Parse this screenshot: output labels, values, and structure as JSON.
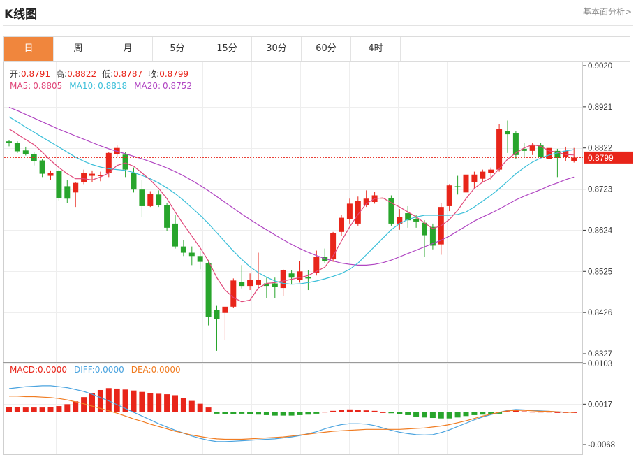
{
  "header": {
    "title": "K线图",
    "analysis_link": "基本面分析>"
  },
  "tabs": [
    {
      "label": "日",
      "active": true
    },
    {
      "label": "周",
      "active": false
    },
    {
      "label": "月",
      "active": false
    },
    {
      "label": "5分",
      "active": false
    },
    {
      "label": "15分",
      "active": false
    },
    {
      "label": "30分",
      "active": false
    },
    {
      "label": "60分",
      "active": false
    },
    {
      "label": "4时",
      "active": false
    }
  ],
  "ohlc_legend": {
    "open_label": "开:",
    "open": "0.8791",
    "high_label": "高:",
    "high": "0.8822",
    "low_label": "低:",
    "low": "0.8787",
    "close_label": "收:",
    "close": "0.8799"
  },
  "ma_legend": {
    "ma5_label": "MA5:",
    "ma5": "0.8805",
    "ma10_label": "MA10:",
    "ma10": "0.8818",
    "ma20_label": "MA20:",
    "ma20": "0.8752"
  },
  "macd_legend": {
    "macd_label": "MACD:",
    "macd": "0.0000",
    "diff_label": "DIFF:",
    "diff": "0.0000",
    "dea_label": "DEA:",
    "dea": "0.0000"
  },
  "current_price_tag": "0.8799",
  "colors": {
    "up": "#e8251a",
    "down": "#28a52c",
    "ma5": "#e0487a",
    "ma10": "#3bbfd9",
    "ma20": "#b045c2",
    "diff": "#4aa3df",
    "dea": "#f07c22",
    "active_tab": "#f0863d"
  },
  "chart_data": [
    {
      "type": "candlestick",
      "y_ticks": [
        "0.9020",
        "0.8921",
        "0.8822",
        "0.8723",
        "0.8624",
        "0.8525",
        "0.8426",
        "0.8327"
      ],
      "ylim": [
        0.8327,
        0.902
      ],
      "candles": [
        [
          0.8838,
          0.8841,
          0.8826,
          0.8834
        ],
        [
          0.8834,
          0.8838,
          0.881,
          0.8814
        ],
        [
          0.8816,
          0.8825,
          0.8804,
          0.8808
        ],
        [
          0.8808,
          0.8812,
          0.878,
          0.879
        ],
        [
          0.8792,
          0.8796,
          0.8752,
          0.876
        ],
        [
          0.8755,
          0.8768,
          0.8745,
          0.8762
        ],
        [
          0.8766,
          0.877,
          0.8695,
          0.8702
        ],
        [
          0.873,
          0.8745,
          0.869,
          0.87
        ],
        [
          0.8715,
          0.874,
          0.868,
          0.8738
        ],
        [
          0.874,
          0.877,
          0.8735,
          0.8762
        ],
        [
          0.8755,
          0.8768,
          0.874,
          0.876
        ],
        [
          0.8755,
          0.8765,
          0.8742,
          0.8756
        ],
        [
          0.8762,
          0.8812,
          0.8752,
          0.881
        ],
        [
          0.8808,
          0.8828,
          0.88,
          0.8822
        ],
        [
          0.8806,
          0.8812,
          0.8752,
          0.877
        ],
        [
          0.8762,
          0.8775,
          0.8715,
          0.8722
        ],
        [
          0.8722,
          0.8745,
          0.8655,
          0.8682
        ],
        [
          0.8682,
          0.8718,
          0.868,
          0.8712
        ],
        [
          0.871,
          0.872,
          0.868,
          0.8685
        ],
        [
          0.8685,
          0.869,
          0.8622,
          0.863
        ],
        [
          0.864,
          0.866,
          0.858,
          0.8585
        ],
        [
          0.8585,
          0.86,
          0.8562,
          0.857
        ],
        [
          0.857,
          0.8585,
          0.854,
          0.8562
        ],
        [
          0.8562,
          0.8575,
          0.853,
          0.8548
        ],
        [
          0.8545,
          0.8552,
          0.8395,
          0.8415
        ],
        [
          0.8432,
          0.8442,
          0.8334,
          0.841
        ],
        [
          0.8425,
          0.8435,
          0.836,
          0.844
        ],
        [
          0.844,
          0.8508,
          0.8438,
          0.8503
        ],
        [
          0.85,
          0.854,
          0.8484,
          0.849
        ],
        [
          0.849,
          0.852,
          0.848,
          0.8505
        ],
        [
          0.8492,
          0.857,
          0.8485,
          0.8505
        ],
        [
          0.8496,
          0.851,
          0.846,
          0.849
        ],
        [
          0.8496,
          0.851,
          0.846,
          0.8488
        ],
        [
          0.8485,
          0.853,
          0.8465,
          0.8528
        ],
        [
          0.852,
          0.8528,
          0.8495,
          0.851
        ],
        [
          0.8505,
          0.855,
          0.8498,
          0.8525
        ],
        [
          0.8512,
          0.8528,
          0.848,
          0.8508
        ],
        [
          0.8522,
          0.8575,
          0.8515,
          0.856
        ],
        [
          0.856,
          0.858,
          0.8545,
          0.855
        ],
        [
          0.8554,
          0.862,
          0.8548,
          0.8617
        ],
        [
          0.862,
          0.866,
          0.861,
          0.8654
        ],
        [
          0.865,
          0.87,
          0.864,
          0.8688
        ],
        [
          0.864,
          0.8705,
          0.8635,
          0.8695
        ],
        [
          0.8685,
          0.872,
          0.868,
          0.87
        ],
        [
          0.8692,
          0.8717,
          0.8688,
          0.8708
        ],
        [
          0.87,
          0.8735,
          0.8695,
          0.8702
        ],
        [
          0.8702,
          0.8708,
          0.8635,
          0.864
        ],
        [
          0.864,
          0.8675,
          0.8625,
          0.8655
        ],
        [
          0.8665,
          0.8682,
          0.863,
          0.8648
        ],
        [
          0.865,
          0.866,
          0.863,
          0.8645
        ],
        [
          0.8642,
          0.8648,
          0.856,
          0.8612
        ],
        [
          0.8632,
          0.864,
          0.8578,
          0.8587
        ],
        [
          0.859,
          0.869,
          0.8565,
          0.868
        ],
        [
          0.8682,
          0.8735,
          0.867,
          0.8732
        ],
        [
          0.873,
          0.8755,
          0.871,
          0.8728
        ],
        [
          0.8715,
          0.8755,
          0.87,
          0.8758
        ],
        [
          0.874,
          0.8765,
          0.8725,
          0.8758
        ],
        [
          0.8748,
          0.877,
          0.874,
          0.8765
        ],
        [
          0.8762,
          0.8775,
          0.8745,
          0.877
        ],
        [
          0.877,
          0.888,
          0.8765,
          0.8868
        ],
        [
          0.8863,
          0.8888,
          0.881,
          0.8855
        ],
        [
          0.8858,
          0.8862,
          0.8795,
          0.8805
        ],
        [
          0.882,
          0.8835,
          0.8798,
          0.8815
        ],
        [
          0.8815,
          0.8835,
          0.8805,
          0.8828
        ],
        [
          0.8828,
          0.8835,
          0.88,
          0.88
        ],
        [
          0.8795,
          0.883,
          0.879,
          0.8822
        ],
        [
          0.8815,
          0.882,
          0.8752,
          0.8798
        ],
        [
          0.88,
          0.8825,
          0.879,
          0.8815
        ],
        [
          0.8791,
          0.8822,
          0.8787,
          0.8799
        ]
      ],
      "ma5": [
        0.8868,
        0.8855,
        0.8842,
        0.883,
        0.8812,
        0.8792,
        0.8775,
        0.876,
        0.8748,
        0.8748,
        0.8745,
        0.8752,
        0.8762,
        0.878,
        0.8786,
        0.8778,
        0.8762,
        0.8745,
        0.8725,
        0.87,
        0.8668,
        0.8638,
        0.861,
        0.8582,
        0.855,
        0.851,
        0.848,
        0.8462,
        0.8452,
        0.8456,
        0.8485,
        0.8496,
        0.8498,
        0.8502,
        0.8506,
        0.851,
        0.8515,
        0.8525,
        0.8535,
        0.8562,
        0.8598,
        0.8632,
        0.8662,
        0.8688,
        0.87,
        0.8702,
        0.869,
        0.868,
        0.8668,
        0.8656,
        0.8642,
        0.8628,
        0.8635,
        0.865,
        0.8672,
        0.87,
        0.8725,
        0.874,
        0.875,
        0.8772,
        0.8795,
        0.881,
        0.8822,
        0.883,
        0.8826,
        0.8815,
        0.8812,
        0.8806,
        0.8805
      ],
      "ma10": [
        0.8897,
        0.8885,
        0.8872,
        0.886,
        0.8848,
        0.8836,
        0.8824,
        0.8812,
        0.88,
        0.879,
        0.8782,
        0.8776,
        0.8772,
        0.877,
        0.8768,
        0.8763,
        0.8756,
        0.8748,
        0.8738,
        0.8726,
        0.8712,
        0.8696,
        0.8678,
        0.866,
        0.864,
        0.8618,
        0.8596,
        0.8574,
        0.8554,
        0.8536,
        0.8522,
        0.8511,
        0.8502,
        0.8496,
        0.8494,
        0.8495,
        0.8498,
        0.8502,
        0.8507,
        0.8513,
        0.852,
        0.853,
        0.8545,
        0.8565,
        0.8585,
        0.8605,
        0.8625,
        0.864,
        0.865,
        0.8656,
        0.866,
        0.866,
        0.866,
        0.866,
        0.8662,
        0.8668,
        0.868,
        0.8694,
        0.8708,
        0.8724,
        0.8742,
        0.876,
        0.8775,
        0.8788,
        0.8798,
        0.8805,
        0.881,
        0.8815,
        0.8818
      ],
      "ma20": [
        0.892,
        0.8912,
        0.8903,
        0.8894,
        0.8885,
        0.8876,
        0.8867,
        0.8859,
        0.8851,
        0.8843,
        0.8835,
        0.8827,
        0.882,
        0.8814,
        0.8808,
        0.8802,
        0.8796,
        0.8789,
        0.8782,
        0.8774,
        0.8765,
        0.8755,
        0.8744,
        0.8732,
        0.8719,
        0.8705,
        0.8691,
        0.8677,
        0.8663,
        0.865,
        0.8637,
        0.8625,
        0.8613,
        0.8601,
        0.859,
        0.858,
        0.8571,
        0.8563,
        0.8556,
        0.855,
        0.8545,
        0.8542,
        0.854,
        0.854,
        0.8542,
        0.8546,
        0.8552,
        0.856,
        0.8568,
        0.8576,
        0.8584,
        0.8592,
        0.86,
        0.861,
        0.8622,
        0.8634,
        0.8646,
        0.8656,
        0.8665,
        0.8675,
        0.8686,
        0.8697,
        0.8706,
        0.8714,
        0.8722,
        0.8731,
        0.8738,
        0.8746,
        0.8752
      ]
    },
    {
      "type": "bar+line",
      "y_ticks": [
        "0.0103",
        "0.0017",
        "-0.0068"
      ],
      "ylim": [
        -0.0068,
        0.0103
      ],
      "macd_hist": [
        0.0011,
        0.0011,
        0.001,
        0.001,
        0.001,
        0.0011,
        0.0013,
        0.0017,
        0.0023,
        0.0032,
        0.0041,
        0.0047,
        0.0051,
        0.005,
        0.0048,
        0.0046,
        0.0043,
        0.0041,
        0.0039,
        0.0038,
        0.0036,
        0.003,
        0.0024,
        0.0018,
        0.001,
        -0.0003,
        -0.0004,
        -0.0004,
        -0.0003,
        -0.0004,
        -0.0005,
        -0.0006,
        -0.0007,
        -0.0007,
        -0.0007,
        -0.0006,
        -0.0005,
        -0.0003,
        0.0001,
        0.0003,
        0.0005,
        0.0006,
        0.0005,
        0.0004,
        0.0003,
        0.0,
        -0.0002,
        -0.0004,
        -0.0006,
        -0.0009,
        -0.0011,
        -0.0012,
        -0.0013,
        -0.0013,
        -0.0011,
        -0.0008,
        -0.0006,
        -0.0005,
        -0.0004,
        -0.0003,
        0.0002,
        0.0004,
        0.0002,
        0.0001,
        0.0001,
        0.0001,
        0.0,
        0.0,
        0.0
      ],
      "diff": [
        0.005,
        0.0052,
        0.0054,
        0.0055,
        0.0056,
        0.0056,
        0.0054,
        0.0052,
        0.0048,
        0.0044,
        0.0038,
        0.0031,
        0.0024,
        0.0016,
        0.0008,
        0.0,
        -0.0008,
        -0.0016,
        -0.0024,
        -0.0031,
        -0.0038,
        -0.0044,
        -0.005,
        -0.0055,
        -0.0059,
        -0.0062,
        -0.0062,
        -0.0061,
        -0.006,
        -0.0059,
        -0.0058,
        -0.0057,
        -0.0056,
        -0.0054,
        -0.0052,
        -0.0049,
        -0.0045,
        -0.0041,
        -0.0035,
        -0.003,
        -0.0026,
        -0.0024,
        -0.0024,
        -0.0025,
        -0.0028,
        -0.0033,
        -0.0038,
        -0.0042,
        -0.0045,
        -0.0047,
        -0.0048,
        -0.0047,
        -0.0043,
        -0.0037,
        -0.003,
        -0.0023,
        -0.0016,
        -0.001,
        -0.0005,
        0.0,
        0.0004,
        0.0006,
        0.0005,
        0.0004,
        0.0003,
        0.0002,
        0.0001,
        0.0,
        0.0
      ],
      "dea": [
        0.0034,
        0.0034,
        0.0033,
        0.0033,
        0.0032,
        0.0031,
        0.0029,
        0.0026,
        0.0022,
        0.0018,
        0.0013,
        0.0008,
        0.0003,
        -0.0002,
        -0.0008,
        -0.0014,
        -0.0019,
        -0.0025,
        -0.003,
        -0.0035,
        -0.004,
        -0.0044,
        -0.0048,
        -0.0051,
        -0.0054,
        -0.0056,
        -0.0057,
        -0.0057,
        -0.0057,
        -0.0056,
        -0.0055,
        -0.0054,
        -0.0053,
        -0.0052,
        -0.005,
        -0.0048,
        -0.0046,
        -0.0044,
        -0.0042,
        -0.004,
        -0.0039,
        -0.0038,
        -0.0037,
        -0.0036,
        -0.0036,
        -0.0036,
        -0.0036,
        -0.0036,
        -0.0035,
        -0.0034,
        -0.0033,
        -0.0031,
        -0.0029,
        -0.0026,
        -0.0022,
        -0.0018,
        -0.0013,
        -0.0008,
        -0.0004,
        0.0,
        0.0003,
        0.0004,
        0.0004,
        0.0003,
        0.0002,
        0.0002,
        0.0001,
        0.0,
        0.0
      ]
    }
  ]
}
